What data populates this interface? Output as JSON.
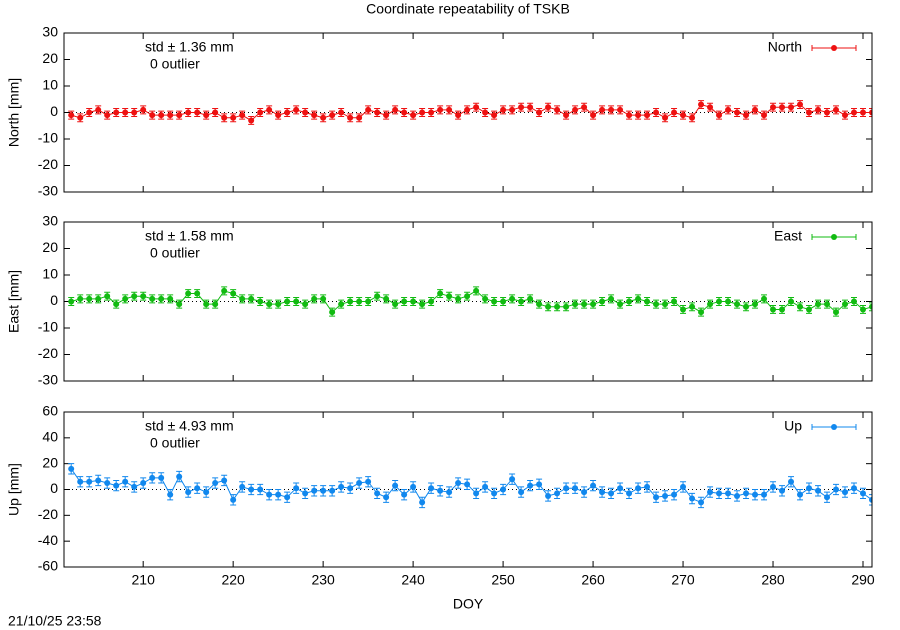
{
  "chart_data": [
    {
      "type": "line",
      "title": "Coordinate repeatability of TSKB",
      "ylabel": "North [mm]",
      "std_label": "std ± 1.36 mm",
      "outlier_label": "0 outlier",
      "xlim": [
        201.2,
        291
      ],
      "xticks": [
        210,
        220,
        230,
        240,
        250,
        260,
        270,
        280,
        290
      ],
      "ylim": [
        -30,
        30
      ],
      "yticks": [
        -30,
        -20,
        -10,
        0,
        10,
        20,
        30
      ],
      "error": 1.5,
      "legend": "top-right",
      "x": [
        202,
        203,
        204,
        205,
        206,
        207,
        208,
        209,
        210,
        211,
        212,
        213,
        214,
        215,
        216,
        217,
        218,
        219,
        220,
        221,
        222,
        223,
        224,
        225,
        226,
        227,
        228,
        229,
        230,
        231,
        232,
        233,
        234,
        235,
        236,
        237,
        238,
        239,
        240,
        241,
        242,
        243,
        244,
        245,
        246,
        247,
        248,
        249,
        250,
        251,
        252,
        253,
        254,
        255,
        256,
        257,
        258,
        259,
        260,
        261,
        262,
        263,
        264,
        265,
        266,
        267,
        268,
        269,
        270,
        271,
        272,
        273,
        274,
        275,
        276,
        277,
        278,
        279,
        280,
        281,
        282,
        283,
        284,
        285,
        286,
        287,
        288,
        289,
        290,
        291
      ],
      "series": [
        {
          "name": "North",
          "color": "#ee1111",
          "values": [
            -1,
            -2,
            0,
            1,
            -1,
            0,
            0,
            0,
            1,
            -1,
            -1,
            -1,
            -1,
            0,
            0,
            -1,
            0,
            -2,
            -2,
            -1,
            -3,
            0,
            1,
            -1,
            0,
            1,
            0,
            -1,
            -2,
            -1,
            0,
            -2,
            -2,
            1,
            0,
            -1,
            1,
            0,
            -1,
            0,
            0,
            1,
            1,
            -1,
            1,
            2,
            0,
            -1,
            1,
            1,
            2,
            2,
            0,
            2,
            1,
            -1,
            1,
            2,
            -1,
            1,
            1,
            1,
            -1,
            -1,
            -1,
            0,
            -2,
            0,
            -1,
            -2,
            3,
            2,
            -1,
            1,
            0,
            -1,
            1,
            -1,
            2,
            2,
            2,
            3,
            0,
            1,
            0,
            1,
            -1,
            0,
            0,
            0
          ]
        }
      ]
    },
    {
      "type": "line",
      "ylabel": "East [mm]",
      "std_label": "std ± 1.58 mm",
      "outlier_label": "0 outlier",
      "xlim": [
        201.2,
        291
      ],
      "xticks": [
        210,
        220,
        230,
        240,
        250,
        260,
        270,
        280,
        290
      ],
      "ylim": [
        -30,
        30
      ],
      "yticks": [
        -30,
        -20,
        -10,
        0,
        10,
        20,
        30
      ],
      "error": 1.5,
      "legend": "top-right",
      "x": [
        202,
        203,
        204,
        205,
        206,
        207,
        208,
        209,
        210,
        211,
        212,
        213,
        214,
        215,
        216,
        217,
        218,
        219,
        220,
        221,
        222,
        223,
        224,
        225,
        226,
        227,
        228,
        229,
        230,
        231,
        232,
        233,
        234,
        235,
        236,
        237,
        238,
        239,
        240,
        241,
        242,
        243,
        244,
        245,
        246,
        247,
        248,
        249,
        250,
        251,
        252,
        253,
        254,
        255,
        256,
        257,
        258,
        259,
        260,
        261,
        262,
        263,
        264,
        265,
        266,
        267,
        268,
        269,
        270,
        271,
        272,
        273,
        274,
        275,
        276,
        277,
        278,
        279,
        280,
        281,
        282,
        283,
        284,
        285,
        286,
        287,
        288,
        289,
        290,
        291
      ],
      "series": [
        {
          "name": "East",
          "color": "#11bb11",
          "values": [
            0,
            1,
            1,
            1,
            2,
            -1,
            1,
            2,
            2,
            1,
            1,
            1,
            -1,
            3,
            3,
            -1,
            -1,
            4,
            3,
            1,
            1,
            0,
            -1,
            -1,
            0,
            0,
            -1,
            1,
            1,
            -4,
            -1,
            0,
            0,
            0,
            2,
            1,
            -1,
            0,
            0,
            -1,
            0,
            3,
            2,
            1,
            2,
            4,
            1,
            0,
            0,
            1,
            0,
            1,
            -1,
            -2,
            -2,
            -2,
            -1,
            -1,
            -1,
            0,
            1,
            -1,
            0,
            1,
            0,
            -1,
            -1,
            0,
            -3,
            -2,
            -4,
            -1,
            0,
            0,
            -1,
            -2,
            -1,
            1,
            -3,
            -3,
            0,
            -2,
            -3,
            -1,
            -1,
            -4,
            -1,
            0,
            -3,
            -2
          ]
        }
      ]
    },
    {
      "type": "line",
      "ylabel": "Up [mm]",
      "xlabel": "DOY",
      "std_label": "std ± 4.93 mm",
      "outlier_label": "0 outlier",
      "xlim": [
        201.2,
        291
      ],
      "xticks": [
        210,
        220,
        230,
        240,
        250,
        260,
        270,
        280,
        290
      ],
      "ylim": [
        -60,
        60
      ],
      "yticks": [
        -60,
        -40,
        -20,
        0,
        20,
        40,
        60
      ],
      "error": 4,
      "legend": "top-right",
      "x": [
        202,
        203,
        204,
        205,
        206,
        207,
        208,
        209,
        210,
        211,
        212,
        213,
        214,
        215,
        216,
        217,
        218,
        219,
        220,
        221,
        222,
        223,
        224,
        225,
        226,
        227,
        228,
        229,
        230,
        231,
        232,
        233,
        234,
        235,
        236,
        237,
        238,
        239,
        240,
        241,
        242,
        243,
        244,
        245,
        246,
        247,
        248,
        249,
        250,
        251,
        252,
        253,
        254,
        255,
        256,
        257,
        258,
        259,
        260,
        261,
        262,
        263,
        264,
        265,
        266,
        267,
        268,
        269,
        270,
        271,
        272,
        273,
        274,
        275,
        276,
        277,
        278,
        279,
        280,
        281,
        282,
        283,
        284,
        285,
        286,
        287,
        288,
        289,
        290,
        291
      ],
      "series": [
        {
          "name": "Up",
          "color": "#1188ee",
          "values": [
            16,
            6,
            6,
            7,
            5,
            3,
            6,
            2,
            5,
            9,
            9,
            -4,
            10,
            -2,
            1,
            -2,
            5,
            7,
            -8,
            2,
            0,
            0,
            -4,
            -4,
            -6,
            1,
            -3,
            -1,
            -1,
            -1,
            2,
            1,
            5,
            6,
            -3,
            -6,
            3,
            -4,
            2,
            -10,
            1,
            -1,
            -2,
            5,
            4,
            -3,
            2,
            -3,
            0,
            8,
            -2,
            3,
            4,
            -5,
            -3,
            1,
            1,
            -2,
            3,
            -2,
            -3,
            1,
            -3,
            1,
            2,
            -6,
            -5,
            -4,
            2,
            -7,
            -10,
            -2,
            -3,
            -3,
            -5,
            -3,
            -4,
            -4,
            2,
            -1,
            6,
            -4,
            1,
            -1,
            -6,
            0,
            -2,
            1,
            -3,
            -8
          ]
        }
      ]
    }
  ],
  "footer": {
    "timestamp": "21/10/25 23:58"
  }
}
